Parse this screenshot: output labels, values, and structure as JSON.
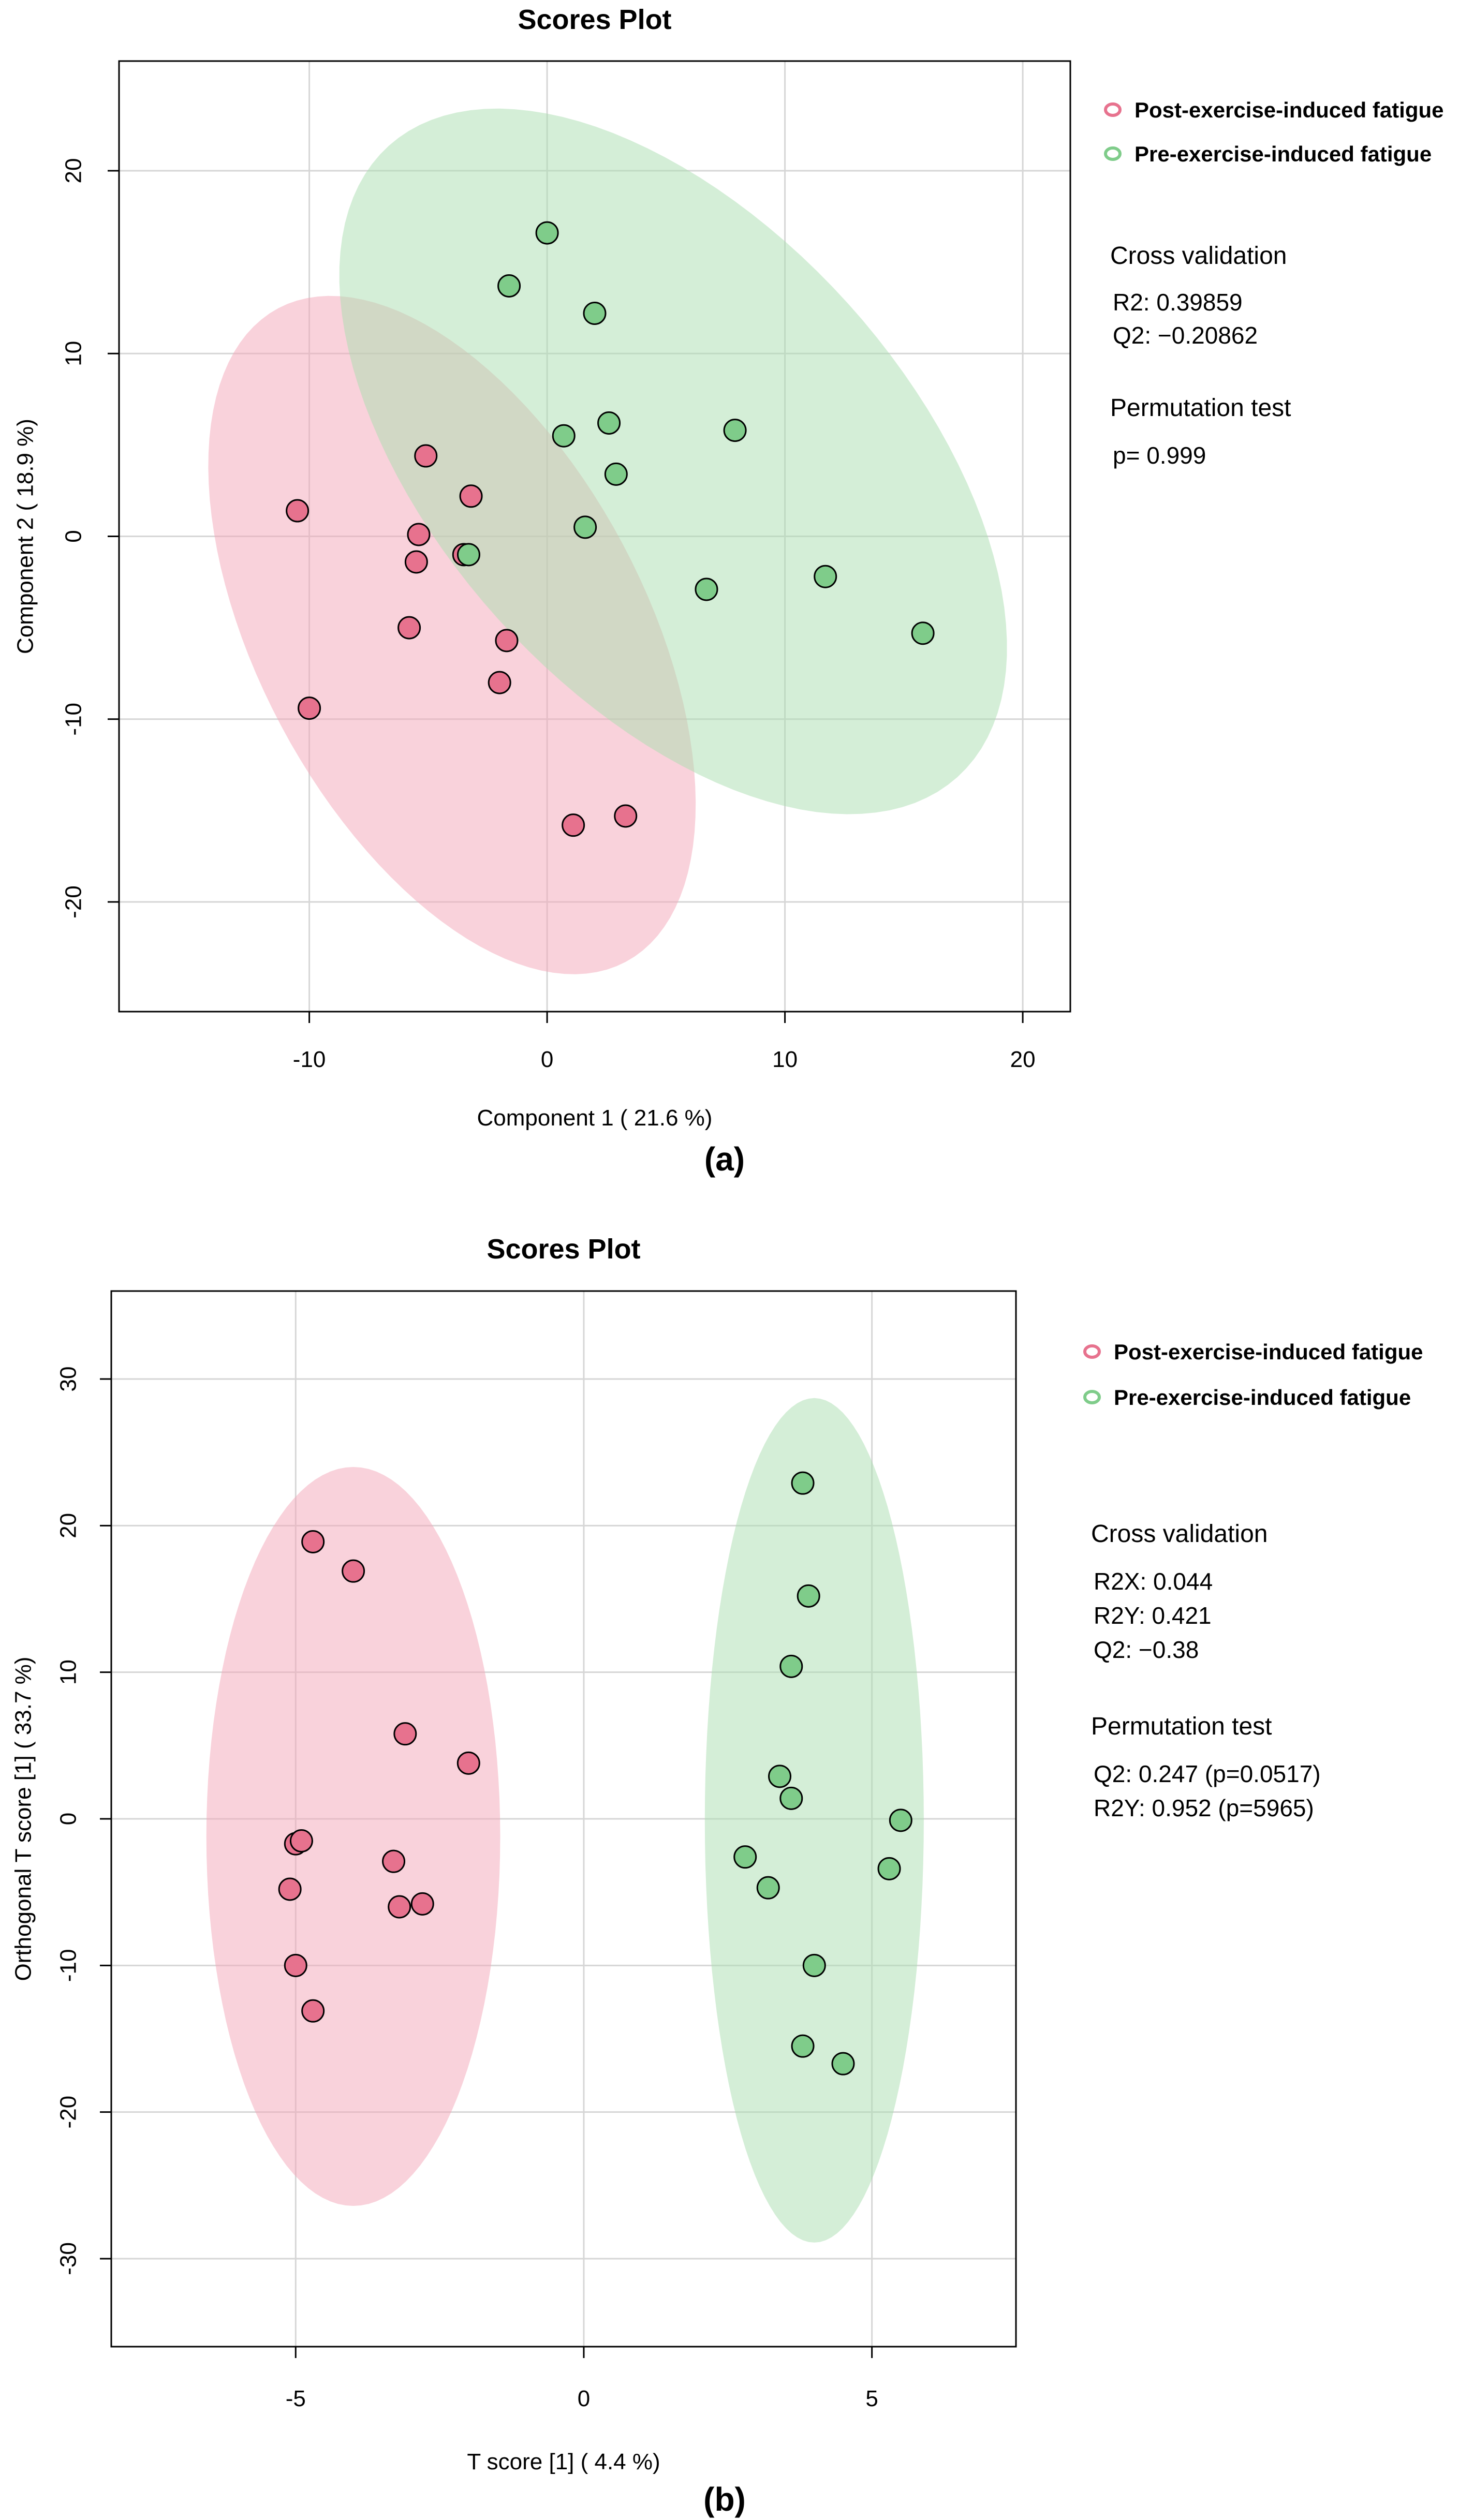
{
  "chart_data": [
    {
      "type": "scatter",
      "panel_label": "(a)",
      "title": "Scores Plot",
      "xlabel": "Component 1 ( 21.6 %)",
      "ylabel": "Component 2 ( 18.9 %)",
      "xlim": [
        -18,
        22
      ],
      "ylim": [
        -26,
        26
      ],
      "xticks": [
        -10,
        0,
        10,
        20
      ],
      "yticks": [
        -20,
        -10,
        0,
        10,
        20
      ],
      "xtick_labels": [
        "-10",
        "0",
        "10",
        "20"
      ],
      "ytick_labels": [
        "-20",
        "-10",
        "0",
        "10",
        "20"
      ],
      "grid": true,
      "legend_position": "right-top",
      "series": [
        {
          "name": "Post-exercise-induced fatigue",
          "color": "#e7728e",
          "ellipse_color": "#f4a6b8",
          "points": [
            [
              -10.5,
              1.4
            ],
            [
              -10.0,
              -9.4
            ],
            [
              -5.1,
              4.4
            ],
            [
              -5.4,
              0.1
            ],
            [
              -5.5,
              -1.4
            ],
            [
              -5.8,
              -5.0
            ],
            [
              -3.2,
              2.2
            ],
            [
              -3.5,
              -1.0
            ],
            [
              -1.7,
              -5.7
            ],
            [
              -2.0,
              -8.0
            ],
            [
              1.1,
              -15.8
            ],
            [
              3.3,
              -15.3
            ]
          ],
          "ellipse": {
            "cx": -4.0,
            "cy": -5.4,
            "a": 17.6,
            "b": 9.2,
            "angle_deg": -62
          }
        },
        {
          "name": "Pre-exercise-induced fatigue",
          "color": "#7fcc8a",
          "ellipse_color": "#a9deb0",
          "points": [
            [
              0.0,
              16.6
            ],
            [
              -1.6,
              13.7
            ],
            [
              2.0,
              12.2
            ],
            [
              2.6,
              6.2
            ],
            [
              0.7,
              5.5
            ],
            [
              7.9,
              5.8
            ],
            [
              2.9,
              3.4
            ],
            [
              1.6,
              0.5
            ],
            [
              -3.3,
              -1.0
            ],
            [
              6.7,
              -2.9
            ],
            [
              11.7,
              -2.2
            ],
            [
              15.8,
              -5.3
            ]
          ],
          "ellipse": {
            "cx": 5.3,
            "cy": 4.1,
            "a": 20.2,
            "b": 11.2,
            "angle_deg": -48
          }
        }
      ],
      "stats": {
        "cv_heading": "Cross validation",
        "cv_lines": [
          "R2: 0.39859",
          "Q2: −0.20862"
        ],
        "perm_heading": "Permutation test",
        "perm_lines": [
          "p= 0.999"
        ]
      }
    },
    {
      "type": "scatter",
      "panel_label": "(b)",
      "title": "Scores Plot",
      "xlabel": "T score [1] ( 4.4 %)",
      "ylabel": "Orthogonal T score [1] ( 33.7 %)",
      "xlim": [
        -8.2,
        7.5
      ],
      "ylim": [
        -36,
        36
      ],
      "xticks": [
        -5,
        0,
        5
      ],
      "yticks": [
        -30,
        -20,
        -10,
        0,
        10,
        20,
        30
      ],
      "xtick_labels": [
        "-5",
        "0",
        "5"
      ],
      "ytick_labels": [
        "-30",
        "-20",
        "-10",
        "0",
        "10",
        "20",
        "30"
      ],
      "grid": true,
      "legend_position": "right-top",
      "series": [
        {
          "name": "Post-exercise-induced fatigue",
          "color": "#e7728e",
          "ellipse_color": "#f4a6b8",
          "points": [
            [
              -4.7,
              18.9
            ],
            [
              -4.0,
              16.9
            ],
            [
              -3.1,
              5.8
            ],
            [
              -2.0,
              3.8
            ],
            [
              -5.0,
              -1.7
            ],
            [
              -4.9,
              -1.5
            ],
            [
              -3.3,
              -2.9
            ],
            [
              -5.1,
              -4.8
            ],
            [
              -3.2,
              -6.0
            ],
            [
              -2.8,
              -5.8
            ],
            [
              -5.0,
              -10.0
            ],
            [
              -4.7,
              -13.1
            ]
          ],
          "ellipse": {
            "cx": -4.0,
            "cy": -1.2,
            "a": 25.2,
            "b": 2.55,
            "angle_deg": 0
          }
        },
        {
          "name": "Pre-exercise-induced fatigue",
          "color": "#7fcc8a",
          "ellipse_color": "#a9deb0",
          "points": [
            [
              3.8,
              22.9
            ],
            [
              3.9,
              15.2
            ],
            [
              3.6,
              10.4
            ],
            [
              3.4,
              2.9
            ],
            [
              3.6,
              1.4
            ],
            [
              5.5,
              -0.1
            ],
            [
              2.8,
              -2.6
            ],
            [
              5.3,
              -3.4
            ],
            [
              3.2,
              -4.7
            ],
            [
              4.0,
              -10.0
            ],
            [
              3.8,
              -15.5
            ],
            [
              4.5,
              -16.7
            ]
          ],
          "ellipse": {
            "cx": 4.0,
            "cy": -0.1,
            "a": 28.8,
            "b": 1.9,
            "angle_deg": 0
          }
        }
      ],
      "stats": {
        "cv_heading": "Cross validation",
        "cv_lines": [
          "R2X: 0.044",
          "R2Y: 0.421",
          "Q2: −0.38"
        ],
        "perm_heading": "Permutation test",
        "perm_lines": [
          "Q2: 0.247 (p=0.0517)",
          "R2Y: 0.952 (p=5965)"
        ]
      }
    }
  ]
}
